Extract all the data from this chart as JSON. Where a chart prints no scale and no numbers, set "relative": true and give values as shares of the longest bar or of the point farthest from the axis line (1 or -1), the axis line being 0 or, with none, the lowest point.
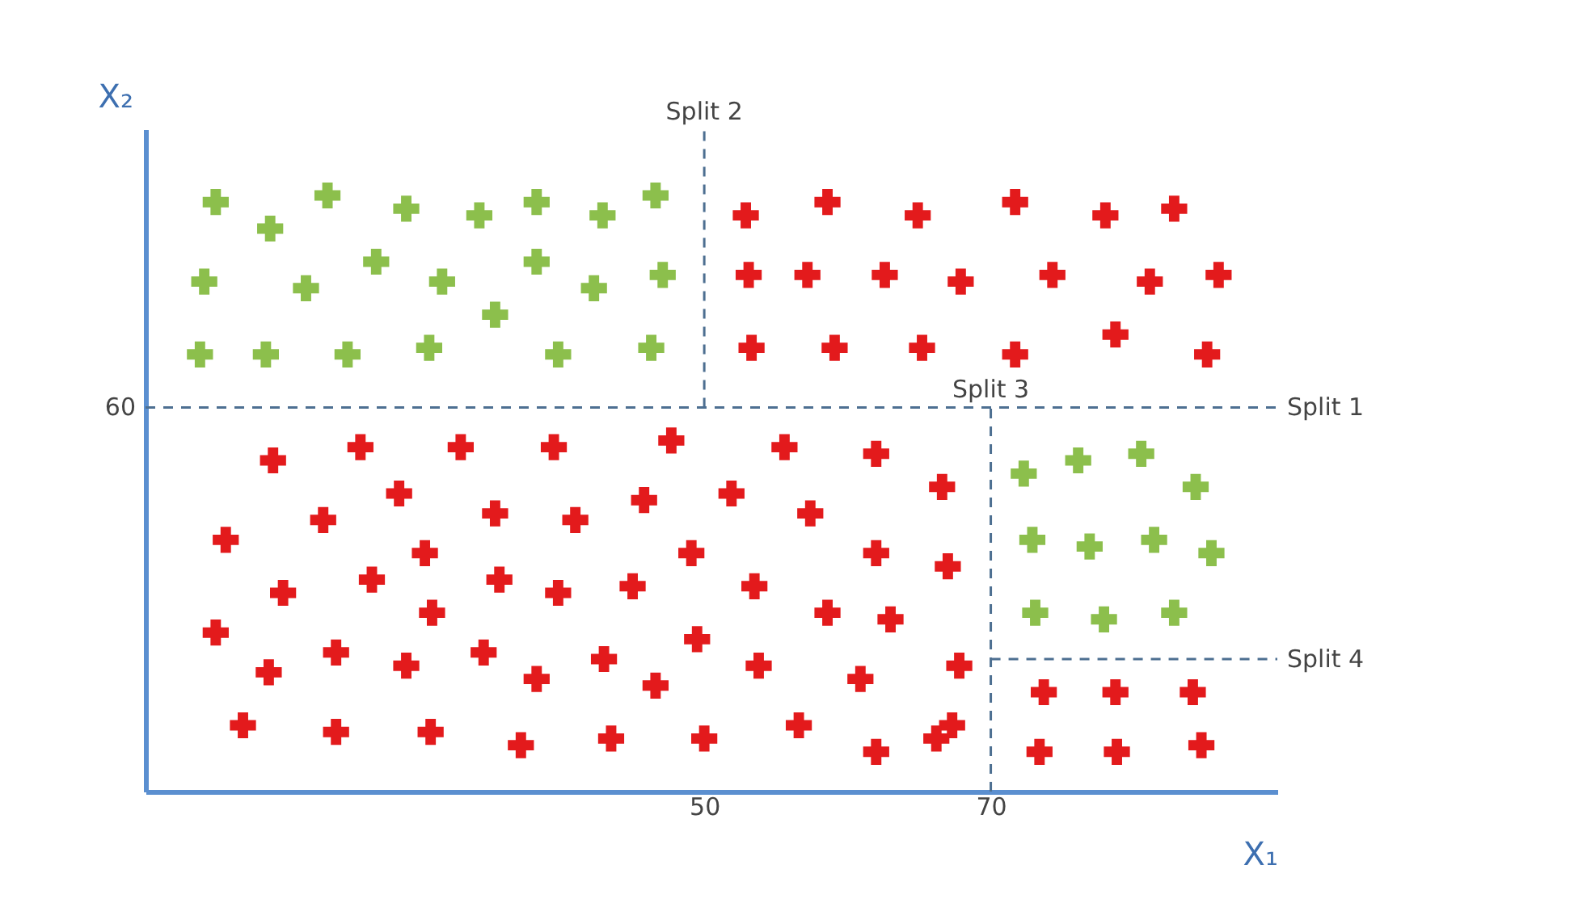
{
  "chart_data": {
    "type": "scatter",
    "relative": true,
    "xlabel": "X₁",
    "ylabel": "X₂",
    "xlim": [
      11,
      90
    ],
    "xticks": [
      50,
      70
    ],
    "grid": false,
    "marker": "cross",
    "series": [
      {
        "color": "#8cbf4c",
        "x": [
          15.9,
          19.7,
          23.7,
          29.2,
          34.3,
          38.3,
          42.9,
          46.6,
          15.1,
          22.2,
          27.1,
          31.7,
          38.3,
          42.3,
          47.1,
          35.4,
          14.8,
          19.4,
          25.1,
          30.8,
          39.8,
          46.3,
          72.3,
          76.1,
          80.5,
          84.3,
          72.9,
          76.9,
          81.4,
          85.4,
          73.1,
          77.9,
          82.8
        ],
        "values": [
          0.89,
          0.85,
          0.9,
          0.88,
          0.87,
          0.89,
          0.87,
          0.9,
          0.77,
          0.76,
          0.8,
          0.77,
          0.8,
          0.76,
          0.78,
          0.72,
          0.66,
          0.66,
          0.66,
          0.67,
          0.66,
          0.67,
          0.48,
          0.5,
          0.51,
          0.46,
          0.38,
          0.37,
          0.38,
          0.36,
          0.27,
          0.26,
          0.27
        ]
      },
      {
        "color": "#e31a1c",
        "x": [
          52.9,
          58.6,
          64.9,
          71.7,
          78,
          82.8,
          53.1,
          57.2,
          62.6,
          67.9,
          74.3,
          81.1,
          85.9,
          53.3,
          59.1,
          65.2,
          71.7,
          78.7,
          85.1,
          73.7,
          78.7,
          84.1,
          73.4,
          78.8,
          84.7,
          19.9,
          26,
          33,
          39.5,
          47.7,
          55.6,
          62,
          66.6,
          16.6,
          23.4,
          28.7,
          35.4,
          41,
          45.8,
          51.9,
          57.4,
          62,
          67,
          20.6,
          26.8,
          30.5,
          35.7,
          39.8,
          45,
          49.1,
          53.5,
          58.6,
          63,
          15.9,
          24.3,
          31,
          34.6,
          43,
          49.5,
          60.9,
          67.8,
          19.6,
          29.2,
          38.3,
          46.6,
          53.8,
          67.3,
          17.8,
          24.3,
          30.9,
          37.2,
          43.5,
          50,
          56.6,
          62,
          66.2
        ],
        "values": [
          0.87,
          0.89,
          0.87,
          0.89,
          0.87,
          0.88,
          0.78,
          0.78,
          0.78,
          0.77,
          0.78,
          0.77,
          0.78,
          0.67,
          0.67,
          0.67,
          0.66,
          0.69,
          0.66,
          0.15,
          0.15,
          0.15,
          0.06,
          0.06,
          0.07,
          0.5,
          0.52,
          0.52,
          0.52,
          0.53,
          0.52,
          0.51,
          0.46,
          0.38,
          0.41,
          0.45,
          0.42,
          0.41,
          0.44,
          0.45,
          0.42,
          0.36,
          0.34,
          0.3,
          0.32,
          0.36,
          0.32,
          0.3,
          0.31,
          0.36,
          0.31,
          0.27,
          0.26,
          0.24,
          0.21,
          0.27,
          0.21,
          0.2,
          0.23,
          0.17,
          0.19,
          0.18,
          0.19,
          0.17,
          0.16,
          0.19,
          0.1,
          0.1,
          0.09,
          0.09,
          0.07,
          0.08,
          0.08,
          0.1,
          0.06,
          0.08
        ]
      },
      {
        "type": "line",
        "marker": "none",
        "line_style": "dashed",
        "color": "#4d6f91",
        "x": [
          11,
          90
        ],
        "values": [
          0.58,
          0.58
        ]
      },
      {
        "type": "line",
        "marker": "none",
        "line_style": "dashed",
        "color": "#4d6f91",
        "x": [
          50,
          50
        ],
        "values": [
          0.58,
          1
        ]
      },
      {
        "type": "line",
        "marker": "none",
        "line_style": "dashed",
        "color": "#4d6f91",
        "x": [
          70,
          70
        ],
        "values": [
          0,
          0.58
        ]
      },
      {
        "type": "line",
        "marker": "none",
        "line_style": "dashed",
        "color": "#4d6f91",
        "x": [
          70,
          90
        ],
        "values": [
          0.2,
          0.2
        ]
      }
    ],
    "annotations": [
      {
        "text": "60",
        "x": 11,
        "y": 0.58
      },
      {
        "text": "Split 1",
        "x": 90,
        "y": 0.58
      },
      {
        "text": "Split 2",
        "x": 50,
        "y": 1
      },
      {
        "text": "Split 3",
        "x": 70,
        "y": 0.58
      },
      {
        "text": "Split 4",
        "x": 90,
        "y": 0.2
      }
    ]
  }
}
